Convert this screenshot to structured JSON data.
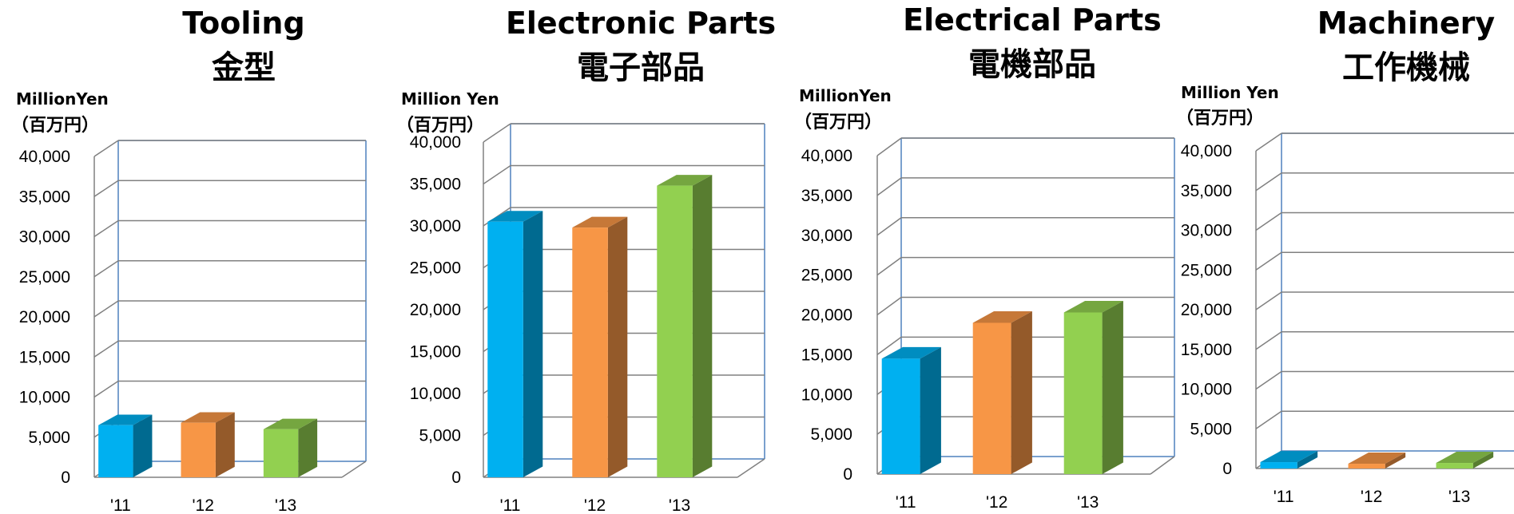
{
  "colors": {
    "2011": "#00B0F0",
    "2012": "#F79646",
    "2013": "#92D050",
    "frame": "#4F81BD",
    "grid": "#808080"
  },
  "chart_data": [
    {
      "type": "bar",
      "title": "Tooling",
      "subtitle": "金型",
      "ylabel": "MillionYen",
      "ylabel2": "（百万円）",
      "categories": [
        "'11",
        "'12",
        "'13"
      ],
      "values": [
        6500,
        6800,
        6000
      ],
      "ylim": [
        0,
        40000
      ],
      "yticks": [
        "0",
        "5,000",
        "10,000",
        "15,000",
        "20,000",
        "25,000",
        "30,000",
        "35,000",
        "40,000"
      ],
      "grid": true
    },
    {
      "type": "bar",
      "title": "Electronic Parts",
      "subtitle": "電子部品",
      "ylabel": "Million Yen",
      "ylabel2": "（百万円）",
      "categories": [
        "'11",
        "'12",
        "'13"
      ],
      "values": [
        30500,
        29800,
        34800
      ],
      "ylim": [
        0,
        40000
      ],
      "yticks": [
        "0",
        "5,000",
        "10,000",
        "15,000",
        "20,000",
        "25,000",
        "30,000",
        "35,000",
        "40,000"
      ],
      "grid": true
    },
    {
      "type": "bar",
      "title": "Electrical Parts",
      "subtitle": "電機部品",
      "ylabel": "MillionYen",
      "ylabel2": "（百万円）",
      "categories": [
        "'11",
        "'12",
        "'13"
      ],
      "values": [
        14500,
        19000,
        20300
      ],
      "ylim": [
        0,
        40000
      ],
      "yticks": [
        "0",
        "5,000",
        "10,000",
        "15,000",
        "20,000",
        "25,000",
        "30,000",
        "35,000",
        "40,000"
      ],
      "grid": true
    },
    {
      "type": "bar",
      "title": "Machinery",
      "subtitle": "工作機械",
      "ylabel": "Million Yen",
      "ylabel2": "（百万円）",
      "categories": [
        "'11",
        "'12",
        "'13"
      ],
      "values": [
        800,
        600,
        700
      ],
      "ylim": [
        0,
        40000
      ],
      "yticks": [
        "0",
        "5,000",
        "10,000",
        "15,000",
        "20,000",
        "25,000",
        "30,000",
        "35,000",
        "40,000"
      ],
      "grid": true
    }
  ]
}
